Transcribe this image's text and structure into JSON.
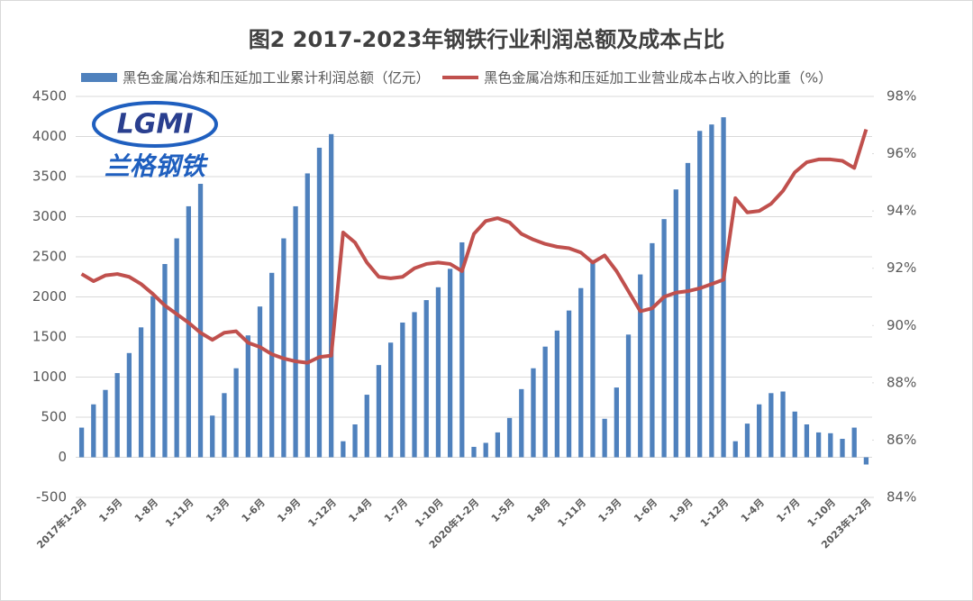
{
  "chart_data": {
    "type": "bar_line",
    "title": "图2 2017-2023年钢铁行业利润总额及成本占比",
    "logo": {
      "text": "LGMI",
      "subtitle": "兰格钢铁"
    },
    "categories": [
      "2017年1-2月",
      null,
      null,
      "1-5月",
      null,
      null,
      "1-8月",
      null,
      null,
      "1-11月",
      null,
      null,
      "1-3月",
      null,
      null,
      "1-6月",
      null,
      null,
      "1-9月",
      null,
      null,
      "1-12月",
      null,
      null,
      "1-4月",
      null,
      null,
      "1-7月",
      null,
      null,
      "1-10月",
      null,
      null,
      "2020年1-2月",
      null,
      null,
      "1-5月",
      null,
      null,
      "1-8月",
      null,
      null,
      "1-11月",
      null,
      null,
      "1-3月",
      null,
      null,
      "1-6月",
      null,
      null,
      "1-9月",
      null,
      null,
      "1-12月",
      null,
      null,
      "1-4月",
      null,
      null,
      "1-7月",
      null,
      null,
      "1-10月",
      null,
      null,
      "2023年1-2月"
    ],
    "series": [
      {
        "name": "黑色金属冶炼和压延加工业累计利润总额（亿元）",
        "color": "#4f81bd",
        "kind": "bar",
        "values": [
          370,
          660,
          840,
          1050,
          1300,
          1620,
          2010,
          2410,
          2730,
          3130,
          3410,
          520,
          800,
          1110,
          1520,
          1880,
          2300,
          2730,
          3130,
          3540,
          3860,
          4030,
          200,
          410,
          780,
          1150,
          1430,
          1680,
          1810,
          1960,
          2120,
          2350,
          2680,
          130,
          180,
          310,
          490,
          850,
          1110,
          1380,
          1580,
          1830,
          2110,
          2460,
          480,
          870,
          1530,
          2280,
          2670,
          2970,
          3340,
          3670,
          4070,
          4150,
          4240,
          200,
          420,
          660,
          800,
          820,
          570,
          410,
          310,
          300,
          230,
          370,
          -90
        ]
      },
      {
        "name": "黑色金属冶炼和压延加工业营业成本占收入的比重（%）",
        "color": "#c0504d",
        "kind": "line",
        "axis": "y2",
        "values": [
          91.8,
          91.55,
          91.75,
          91.8,
          91.7,
          91.45,
          91.1,
          90.7,
          90.4,
          90.1,
          89.75,
          89.5,
          89.75,
          89.8,
          89.4,
          89.25,
          89.0,
          88.85,
          88.75,
          88.7,
          88.9,
          88.95,
          93.25,
          92.9,
          92.2,
          91.7,
          91.65,
          91.7,
          92.0,
          92.15,
          92.2,
          92.15,
          91.9,
          93.2,
          93.65,
          93.75,
          93.6,
          93.2,
          93.0,
          92.85,
          92.75,
          92.7,
          92.55,
          92.2,
          92.45,
          91.9,
          91.2,
          90.5,
          90.6,
          91.0,
          91.15,
          91.2,
          91.3,
          91.45,
          91.6,
          94.45,
          93.95,
          94.0,
          94.25,
          94.7,
          95.35,
          95.7,
          95.8,
          95.8,
          95.75,
          95.5,
          96.85
        ]
      }
    ],
    "ylim": [
      -500,
      4500
    ],
    "yticks": [
      -500,
      0,
      500,
      1000,
      1500,
      2000,
      2500,
      3000,
      3500,
      4000,
      4500
    ],
    "y2lim": [
      84,
      98
    ],
    "y2ticks": [
      {
        "value": 84,
        "label": "84%"
      },
      {
        "value": 86,
        "label": "86%"
      },
      {
        "value": 88,
        "label": "88%"
      },
      {
        "value": 90,
        "label": "90%"
      },
      {
        "value": 92,
        "label": "92%"
      },
      {
        "value": 94,
        "label": "94%"
      },
      {
        "value": 96,
        "label": "96%"
      },
      {
        "value": 98,
        "label": "98%"
      }
    ],
    "grid": true,
    "legend": "top"
  }
}
